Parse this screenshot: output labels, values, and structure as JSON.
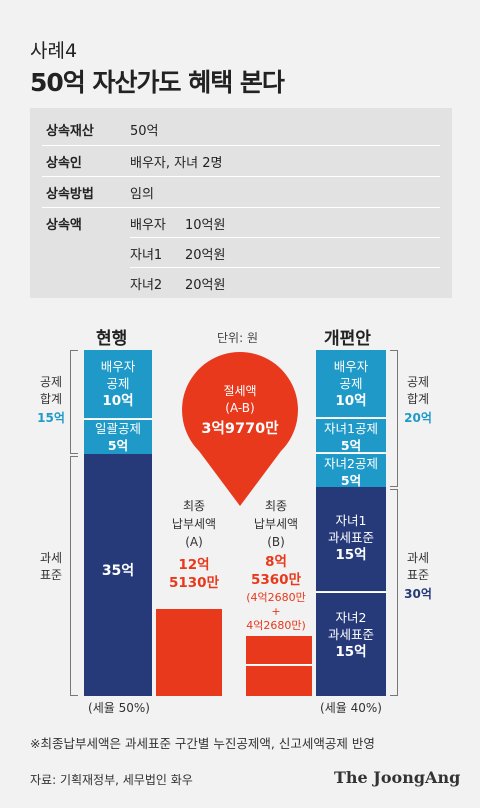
{
  "header": {
    "case": "사례4",
    "title": "50억 자산가도 혜택 본다"
  },
  "info": {
    "inherited_property_label": "상속재산",
    "inherited_property_value": "50억",
    "heirs_label": "상속인",
    "heirs_value": "배우자, 자녀 2명",
    "method_label": "상속방법",
    "method_value": "임의",
    "amount_label": "상속액",
    "amounts": [
      {
        "who": "배우자",
        "amount": "10억원"
      },
      {
        "who": "자녀1",
        "amount": "20억원"
      },
      {
        "who": "자녀2",
        "amount": "20억원"
      }
    ]
  },
  "chart_data": {
    "type": "bar",
    "unit_label": "단위: 원",
    "current": {
      "title": "현행",
      "blocks": [
        {
          "label": "배우자\n공제",
          "value_label": "10억",
          "value": 10,
          "kind": "deduction"
        },
        {
          "label": "일괄공제",
          "value_label": "5억",
          "value": 5,
          "kind": "deduction"
        },
        {
          "label": "",
          "value_label": "35억",
          "value": 35,
          "kind": "taxable"
        }
      ],
      "deduction_total_label": "공제\n합계",
      "deduction_total": "15억",
      "taxable_label": "과세\n표준",
      "tax_rate": "(세율 50%)",
      "final_tax_label": "최종\n납부세액\n(A)",
      "final_tax": "12억\n5130만"
    },
    "reform": {
      "title": "개편안",
      "blocks": [
        {
          "label": "배우자\n공제",
          "value_label": "10억",
          "value": 10,
          "kind": "deduction"
        },
        {
          "label": "자녀1공제",
          "value_label": "5억",
          "value": 5,
          "kind": "deduction"
        },
        {
          "label": "자녀2공제",
          "value_label": "5억",
          "value": 5,
          "kind": "deduction"
        },
        {
          "label": "자녀1\n과세표준",
          "value_label": "15억",
          "value": 15,
          "kind": "taxable"
        },
        {
          "label": "자녀2\n과세표준",
          "value_label": "15억",
          "value": 15,
          "kind": "taxable"
        }
      ],
      "deduction_total_label": "공제\n합계",
      "deduction_total": "20억",
      "taxable_label": "과세\n표준",
      "taxable_total": "30억",
      "tax_rate": "(세율 40%)",
      "final_tax_label": "최종\n납부세액\n(B)",
      "final_tax": "8억\n5360만",
      "final_tax_breakdown": "(4억2680만\n+\n4억2680만)"
    },
    "savings": {
      "label": "절세액\n(A-B)",
      "value": "3억9770만"
    }
  },
  "footer": {
    "note": "※최종납부세액은 과세표준 구간별 누진공제액, 신고세액공제 반영",
    "source": "자료: 기획재정부, 세무법인 화우",
    "logo": "The JoongAng"
  },
  "colors": {
    "deduction": "#1f9ac8",
    "taxable": "#263a7a",
    "tax": "#e8391c"
  }
}
